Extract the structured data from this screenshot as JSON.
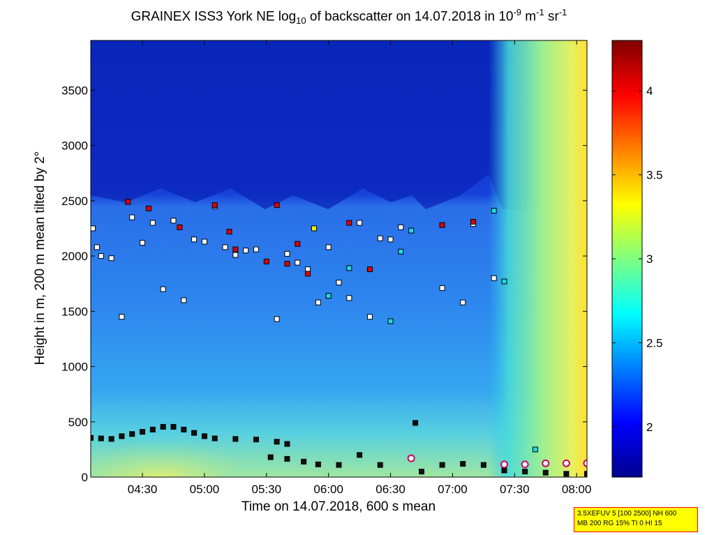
{
  "title": {
    "main": "GRAINEX ISS3 York NE log",
    "sub": "10",
    "mid": " of backscatter on 14.07.2018 in 10",
    "sup1": "-9",
    "unit1": " m",
    "sup2": "-1",
    "unit2": " sr",
    "sup3": "-1"
  },
  "info_box": {
    "line1": "3.5XEFUV 5 [100 2500] NH 600",
    "line2": "MB 200 RG 15% TI 0 HI 15"
  },
  "chart_data": {
    "type": "heatmap",
    "xlabel": "Time on 14.07.2018, 600 s mean",
    "ylabel": "Height in m, 200 m mean tilted by 2°",
    "x_range": [
      "04:05",
      "08:05"
    ],
    "xticks": [
      "04:30",
      "05:00",
      "05:30",
      "06:00",
      "06:30",
      "07:00",
      "07:30",
      "08:00"
    ],
    "ylim": [
      0,
      3950
    ],
    "yticks": [
      0,
      500,
      1000,
      1500,
      2000,
      2500,
      3000,
      3500
    ],
    "colorbar": {
      "range": [
        1.7,
        4.3
      ],
      "ticks": [
        "2",
        "2.5",
        "3",
        "3.5",
        "4"
      ],
      "colormap": "jet"
    },
    "field_description_layers": [
      {
        "region": "surface layer",
        "height_range": [
          0,
          400
        ],
        "value": 2.9
      },
      {
        "region": "boundary layer",
        "height_range": [
          400,
          2300
        ],
        "value": 2.45
      },
      {
        "region": "free troposphere",
        "height_range": [
          2300,
          3950
        ],
        "value": 1.8
      },
      {
        "region": "after 07:20",
        "height_range": [
          0,
          3950
        ],
        "value_range": [
          2.7,
          3.4
        ]
      }
    ],
    "series": [
      {
        "marker": "square-black",
        "points": [
          {
            "t": "04:05",
            "h": 355
          },
          {
            "t": "04:10",
            "h": 350
          },
          {
            "t": "04:15",
            "h": 345
          },
          {
            "t": "04:20",
            "h": 370
          },
          {
            "t": "04:25",
            "h": 390
          },
          {
            "t": "04:30",
            "h": 410
          },
          {
            "t": "04:35",
            "h": 430
          },
          {
            "t": "04:40",
            "h": 455
          },
          {
            "t": "04:45",
            "h": 455
          },
          {
            "t": "04:50",
            "h": 430
          },
          {
            "t": "04:55",
            "h": 400
          },
          {
            "t": "05:00",
            "h": 370
          },
          {
            "t": "05:05",
            "h": 350
          },
          {
            "t": "05:15",
            "h": 345
          },
          {
            "t": "05:25",
            "h": 340
          },
          {
            "t": "05:35",
            "h": 320
          },
          {
            "t": "05:40",
            "h": 300
          },
          {
            "t": "05:32",
            "h": 180
          },
          {
            "t": "05:40",
            "h": 165
          },
          {
            "t": "05:48",
            "h": 140
          },
          {
            "t": "05:55",
            "h": 115
          },
          {
            "t": "06:05",
            "h": 110
          },
          {
            "t": "06:15",
            "h": 200
          },
          {
            "t": "06:25",
            "h": 110
          },
          {
            "t": "06:42",
            "h": 490
          },
          {
            "t": "06:45",
            "h": 50
          },
          {
            "t": "06:55",
            "h": 110
          },
          {
            "t": "07:05",
            "h": 120
          },
          {
            "t": "07:15",
            "h": 110
          },
          {
            "t": "07:25",
            "h": 60
          },
          {
            "t": "07:35",
            "h": 50
          },
          {
            "t": "07:45",
            "h": 40
          },
          {
            "t": "07:55",
            "h": 30
          },
          {
            "t": "08:05",
            "h": 30
          }
        ]
      },
      {
        "marker": "square-white",
        "points": [
          {
            "t": "04:06",
            "h": 2250
          },
          {
            "t": "04:08",
            "h": 2080
          },
          {
            "t": "04:10",
            "h": 2000
          },
          {
            "t": "04:15",
            "h": 1980
          },
          {
            "t": "04:20",
            "h": 1450
          },
          {
            "t": "04:25",
            "h": 2350
          },
          {
            "t": "04:30",
            "h": 2120
          },
          {
            "t": "04:35",
            "h": 2300
          },
          {
            "t": "04:40",
            "h": 1700
          },
          {
            "t": "04:45",
            "h": 2320
          },
          {
            "t": "04:50",
            "h": 1600
          },
          {
            "t": "04:55",
            "h": 2150
          },
          {
            "t": "05:00",
            "h": 2130
          },
          {
            "t": "05:05",
            "h": 2450
          },
          {
            "t": "05:10",
            "h": 2080
          },
          {
            "t": "05:15",
            "h": 2010
          },
          {
            "t": "05:20",
            "h": 2050
          },
          {
            "t": "05:25",
            "h": 2060
          },
          {
            "t": "05:35",
            "h": 1430
          },
          {
            "t": "05:40",
            "h": 2020
          },
          {
            "t": "05:45",
            "h": 1940
          },
          {
            "t": "05:50",
            "h": 1880
          },
          {
            "t": "05:55",
            "h": 1580
          },
          {
            "t": "06:00",
            "h": 2080
          },
          {
            "t": "06:05",
            "h": 1760
          },
          {
            "t": "06:10",
            "h": 1620
          },
          {
            "t": "06:15",
            "h": 2300
          },
          {
            "t": "06:20",
            "h": 1450
          },
          {
            "t": "06:25",
            "h": 2160
          },
          {
            "t": "06:30",
            "h": 2150
          },
          {
            "t": "06:35",
            "h": 2260
          },
          {
            "t": "06:55",
            "h": 1710
          },
          {
            "t": "07:05",
            "h": 1580
          },
          {
            "t": "07:10",
            "h": 2290
          },
          {
            "t": "07:20",
            "h": 1800
          }
        ]
      },
      {
        "marker": "square-red",
        "points": [
          {
            "t": "04:23",
            "h": 2490
          },
          {
            "t": "04:33",
            "h": 2430
          },
          {
            "t": "04:48",
            "h": 2260
          },
          {
            "t": "05:05",
            "h": 2460
          },
          {
            "t": "05:12",
            "h": 2220
          },
          {
            "t": "05:15",
            "h": 2060
          },
          {
            "t": "05:30",
            "h": 1950
          },
          {
            "t": "05:35",
            "h": 2460
          },
          {
            "t": "05:40",
            "h": 1930
          },
          {
            "t": "05:45",
            "h": 2110
          },
          {
            "t": "05:50",
            "h": 1840
          },
          {
            "t": "06:10",
            "h": 2300
          },
          {
            "t": "06:20",
            "h": 1880
          },
          {
            "t": "06:55",
            "h": 2280
          },
          {
            "t": "07:10",
            "h": 2310
          }
        ]
      },
      {
        "marker": "square-cyan",
        "points": [
          {
            "t": "06:00",
            "h": 1640
          },
          {
            "t": "06:10",
            "h": 1890
          },
          {
            "t": "06:30",
            "h": 1410
          },
          {
            "t": "06:35",
            "h": 2040
          },
          {
            "t": "06:40",
            "h": 2230
          },
          {
            "t": "07:20",
            "h": 2410
          },
          {
            "t": "07:25",
            "h": 1770
          },
          {
            "t": "07:40",
            "h": 250
          }
        ]
      },
      {
        "marker": "square-yellow",
        "points": [
          {
            "t": "05:53",
            "h": 2250
          }
        ]
      },
      {
        "marker": "circle-magenta",
        "points": [
          {
            "t": "06:40",
            "h": 170
          },
          {
            "t": "07:25",
            "h": 115
          },
          {
            "t": "07:35",
            "h": 115
          },
          {
            "t": "07:45",
            "h": 125
          },
          {
            "t": "07:55",
            "h": 125
          },
          {
            "t": "08:05",
            "h": 125
          }
        ]
      }
    ]
  }
}
